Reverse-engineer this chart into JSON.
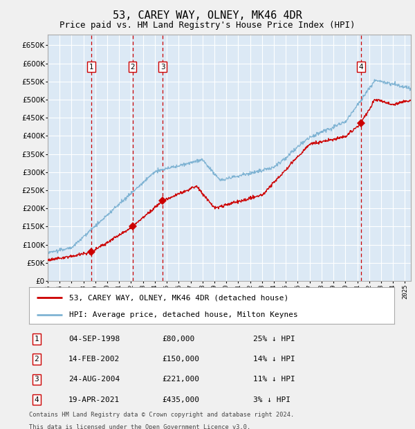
{
  "title": "53, CAREY WAY, OLNEY, MK46 4DR",
  "subtitle": "Price paid vs. HM Land Registry's House Price Index (HPI)",
  "title_fontsize": 11,
  "subtitle_fontsize": 9,
  "bg_color": "#dce9f5",
  "fig_color": "#f0f0f0",
  "grid_color": "#ffffff",
  "ylim": [
    0,
    680000
  ],
  "yticks": [
    0,
    50000,
    100000,
    150000,
    200000,
    250000,
    300000,
    350000,
    400000,
    450000,
    500000,
    550000,
    600000,
    650000
  ],
  "hpi_color": "#7fb3d3",
  "price_color": "#cc0000",
  "vline_color": "#cc0000",
  "sale_points": [
    {
      "label": "1",
      "date_num": 1998.67,
      "price": 80000
    },
    {
      "label": "2",
      "date_num": 2002.12,
      "price": 150000
    },
    {
      "label": "3",
      "date_num": 2004.65,
      "price": 221000
    },
    {
      "label": "4",
      "date_num": 2021.3,
      "price": 435000
    }
  ],
  "legend_line1": "53, CAREY WAY, OLNEY, MK46 4DR (detached house)",
  "legend_line2": "HPI: Average price, detached house, Milton Keynes",
  "table": [
    {
      "num": "1",
      "date": "04-SEP-1998",
      "price": "£80,000",
      "pct": "25% ↓ HPI"
    },
    {
      "num": "2",
      "date": "14-FEB-2002",
      "price": "£150,000",
      "pct": "14% ↓ HPI"
    },
    {
      "num": "3",
      "date": "24-AUG-2004",
      "price": "£221,000",
      "pct": "11% ↓ HPI"
    },
    {
      "num": "4",
      "date": "19-APR-2021",
      "price": "£435,000",
      "pct": "3% ↓ HPI"
    }
  ],
  "footnote1": "Contains HM Land Registry data © Crown copyright and database right 2024.",
  "footnote2": "This data is licensed under the Open Government Licence v3.0.",
  "xmin": 1995.0,
  "xmax": 2025.5,
  "xtick_years": [
    1995,
    1996,
    1997,
    1998,
    1999,
    2000,
    2001,
    2002,
    2003,
    2004,
    2005,
    2006,
    2007,
    2008,
    2009,
    2010,
    2011,
    2012,
    2013,
    2014,
    2015,
    2016,
    2017,
    2018,
    2019,
    2020,
    2021,
    2022,
    2023,
    2024,
    2025
  ]
}
